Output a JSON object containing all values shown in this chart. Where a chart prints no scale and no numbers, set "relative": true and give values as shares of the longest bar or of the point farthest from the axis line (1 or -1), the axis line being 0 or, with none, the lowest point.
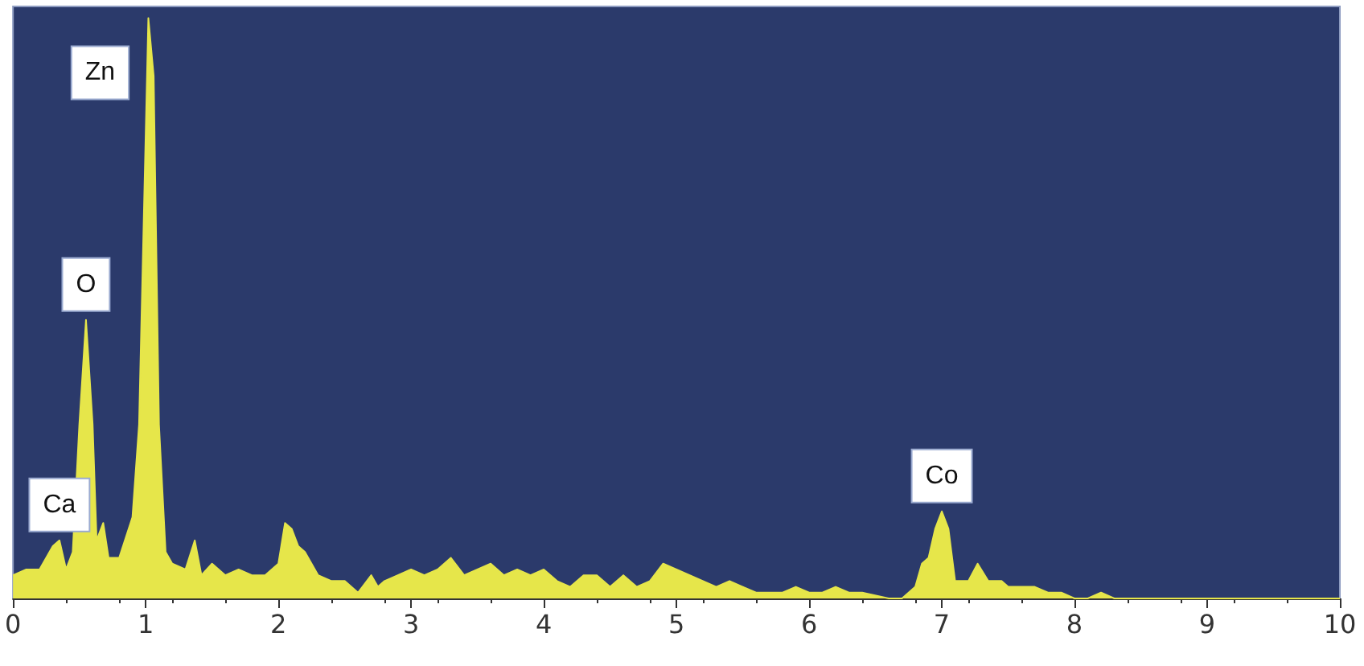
{
  "chart_data": {
    "type": "area",
    "relative": true,
    "color": "#e6e64a",
    "x": [
      0,
      0.1,
      0.2,
      0.3,
      0.35,
      0.4,
      0.45,
      0.5,
      0.55,
      0.6,
      0.63,
      0.68,
      0.72,
      0.8,
      0.9,
      0.95,
      1.0,
      1.02,
      1.06,
      1.1,
      1.15,
      1.2,
      1.3,
      1.37,
      1.42,
      1.5,
      1.6,
      1.7,
      1.8,
      1.9,
      2.0,
      2.05,
      2.1,
      2.15,
      2.2,
      2.3,
      2.4,
      2.5,
      2.6,
      2.7,
      2.75,
      2.8,
      2.9,
      3.0,
      3.1,
      3.2,
      3.3,
      3.4,
      3.5,
      3.6,
      3.7,
      3.8,
      3.9,
      4.0,
      4.1,
      4.2,
      4.3,
      4.4,
      4.5,
      4.6,
      4.7,
      4.8,
      4.9,
      5.0,
      5.1,
      5.2,
      5.3,
      5.4,
      5.5,
      5.6,
      5.7,
      5.8,
      5.9,
      6.0,
      6.1,
      6.2,
      6.3,
      6.4,
      6.6,
      6.7,
      6.8,
      6.85,
      6.9,
      6.95,
      7.0,
      7.05,
      7.1,
      7.2,
      7.27,
      7.35,
      7.45,
      7.5,
      7.6,
      7.7,
      7.8,
      7.9,
      8.0,
      8.1,
      8.2,
      8.3,
      10
    ],
    "values": [
      0.04,
      0.05,
      0.05,
      0.09,
      0.1,
      0.05,
      0.08,
      0.3,
      0.48,
      0.3,
      0.1,
      0.13,
      0.07,
      0.07,
      0.14,
      0.3,
      0.8,
      1.0,
      0.9,
      0.3,
      0.08,
      0.06,
      0.05,
      0.1,
      0.04,
      0.06,
      0.04,
      0.05,
      0.04,
      0.04,
      0.06,
      0.13,
      0.12,
      0.09,
      0.08,
      0.04,
      0.03,
      0.03,
      0.01,
      0.04,
      0.02,
      0.03,
      0.04,
      0.05,
      0.04,
      0.05,
      0.07,
      0.04,
      0.05,
      0.06,
      0.04,
      0.05,
      0.04,
      0.05,
      0.03,
      0.02,
      0.04,
      0.04,
      0.02,
      0.04,
      0.02,
      0.03,
      0.06,
      0.05,
      0.04,
      0.03,
      0.02,
      0.03,
      0.02,
      0.01,
      0.01,
      0.01,
      0.02,
      0.01,
      0.01,
      0.02,
      0.01,
      0.01,
      0,
      0,
      0.02,
      0.06,
      0.07,
      0.12,
      0.15,
      0.12,
      0.03,
      0.03,
      0.06,
      0.03,
      0.03,
      0.02,
      0.02,
      0.02,
      0.01,
      0.01,
      0,
      0,
      0.01,
      0,
      0
    ],
    "xlim": [
      0,
      10
    ],
    "xticks": [
      0,
      1,
      2,
      3,
      4,
      5,
      6,
      7,
      8,
      9,
      10
    ],
    "annotations": [
      {
        "text": "Ca",
        "x": 0.35,
        "y": 0.1
      },
      {
        "text": "O",
        "x": 0.55,
        "y": 0.48
      },
      {
        "text": "Zn",
        "x": 1.02,
        "y": 1.0
      },
      {
        "text": "Co",
        "x": 7.0,
        "y": 0.15
      }
    ]
  }
}
